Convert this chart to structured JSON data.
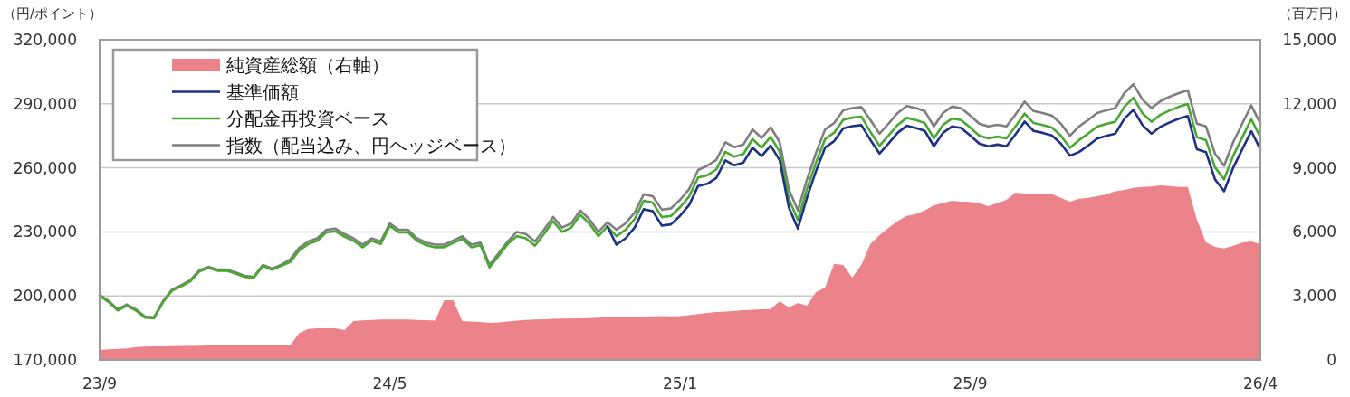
{
  "chart_data": {
    "type": "line",
    "ylabel": "（円/ポイント）",
    "y2label": "（百万円）",
    "legend": "top left",
    "grid": "y",
    "ylim": [
      170000,
      320000
    ],
    "yticks": [
      {
        "value": 170000,
        "label": "170,000"
      },
      {
        "value": 200000,
        "label": "200,000"
      },
      {
        "value": 230000,
        "label": "230,000"
      },
      {
        "value": 260000,
        "label": "260,000"
      },
      {
        "value": 290000,
        "label": "290,000"
      },
      {
        "value": 320000,
        "label": "320,000"
      }
    ],
    "y2lim": [
      0,
      15000
    ],
    "y2ticks": [
      {
        "value": 0,
        "label": "0"
      },
      {
        "value": 3000,
        "label": "3,000"
      },
      {
        "value": 6000,
        "label": "6,000"
      },
      {
        "value": 9000,
        "label": "9,000"
      },
      {
        "value": 12000,
        "label": "12,000"
      },
      {
        "value": 15000,
        "label": "15,000"
      }
    ],
    "categories": [
      "23/9",
      null,
      null,
      null,
      null,
      null,
      null,
      null,
      null,
      null,
      null,
      null,
      null,
      null,
      null,
      null,
      null,
      null,
      null,
      null,
      null,
      null,
      null,
      null,
      null,
      null,
      null,
      null,
      null,
      null,
      null,
      null,
      "24/5",
      null,
      null,
      null,
      null,
      null,
      null,
      null,
      null,
      null,
      null,
      null,
      null,
      null,
      null,
      null,
      null,
      null,
      null,
      null,
      null,
      null,
      null,
      null,
      null,
      null,
      null,
      null,
      null,
      null,
      null,
      null,
      "25/1",
      null,
      null,
      null,
      null,
      null,
      null,
      null,
      null,
      null,
      null,
      null,
      null,
      null,
      null,
      null,
      null,
      null,
      null,
      null,
      null,
      null,
      null,
      null,
      null,
      null,
      null,
      null,
      null,
      null,
      null,
      null,
      "25/9",
      null,
      null,
      null,
      null,
      null,
      null,
      null,
      null,
      null,
      null,
      null,
      null,
      null,
      null,
      null,
      null,
      null,
      null,
      null,
      null,
      null,
      null,
      null,
      null,
      null,
      null,
      null,
      null,
      null,
      null,
      null,
      "26/4"
    ],
    "series": [
      {
        "name": "純資産総額（右軸）",
        "type": "area",
        "axis": "y2",
        "color": "#ec838a",
        "values": [
          470,
          500,
          520,
          540,
          600,
          630,
          640,
          640,
          650,
          660,
          660,
          670,
          680,
          680,
          680,
          680,
          680,
          680,
          680,
          680,
          680,
          680,
          1250,
          1450,
          1480,
          1480,
          1480,
          1400,
          1820,
          1850,
          1870,
          1900,
          1900,
          1900,
          1900,
          1880,
          1860,
          1840,
          2800,
          2800,
          1820,
          1800,
          1780,
          1740,
          1760,
          1800,
          1840,
          1880,
          1900,
          1910,
          1930,
          1940,
          1950,
          1950,
          1960,
          1980,
          2000,
          2010,
          2020,
          2030,
          2030,
          2040,
          2050,
          2040,
          2060,
          2100,
          2150,
          2200,
          2250,
          2270,
          2300,
          2330,
          2350,
          2370,
          2380,
          2750,
          2460,
          2670,
          2540,
          3180,
          3390,
          4500,
          4450,
          3860,
          4450,
          5430,
          5850,
          6190,
          6500,
          6750,
          6830,
          7000,
          7250,
          7350,
          7460,
          7420,
          7400,
          7340,
          7200,
          7350,
          7500,
          7840,
          7800,
          7760,
          7780,
          7760,
          7600,
          7420,
          7550,
          7600,
          7670,
          7750,
          7900,
          7970,
          8060,
          8100,
          8120,
          8180,
          8150,
          8100,
          8100,
          6570,
          5510,
          5300,
          5220,
          5350,
          5500,
          5550,
          5430
        ]
      },
      {
        "name": "基準価額",
        "color": "#1f3184",
        "values": [
          null,
          null,
          null,
          null,
          null,
          null,
          null,
          null,
          null,
          null,
          null,
          null,
          null,
          null,
          null,
          null,
          null,
          null,
          null,
          null,
          null,
          null,
          null,
          null,
          null,
          null,
          null,
          null,
          null,
          null,
          null,
          null,
          null,
          null,
          null,
          null,
          null,
          null,
          null,
          null,
          null,
          null,
          null,
          null,
          null,
          null,
          null,
          null,
          null,
          null,
          null,
          null,
          null,
          null,
          null,
          null,
          232500,
          224000,
          227000,
          232000,
          240600,
          239700,
          232900,
          233500,
          237500,
          242500,
          251500,
          252500,
          255200,
          263500,
          261200,
          262500,
          269500,
          265500,
          270500,
          263500,
          241500,
          231500,
          246000,
          258500,
          269500,
          272500,
          278500,
          279500,
          280000,
          273100,
          266700,
          271400,
          276400,
          279700,
          278700,
          277300,
          270100,
          276400,
          279400,
          278700,
          275200,
          271400,
          270100,
          270900,
          270100,
          275700,
          281700,
          277300,
          276400,
          275200,
          271400,
          265700,
          267400,
          270400,
          273700,
          275000,
          276000,
          283000,
          287200,
          280000,
          276000,
          279300,
          281300,
          283000,
          284300,
          268700,
          267400,
          254600,
          249000,
          260000,
          268700,
          277200,
          268700
        ]
      },
      {
        "name": "分配金再投資ベース",
        "color": "#4aa832",
        "values": [
          200000,
          197100,
          193200,
          195500,
          193200,
          189800,
          189500,
          197100,
          202500,
          204500,
          206800,
          211500,
          213100,
          211800,
          211800,
          210500,
          208900,
          208500,
          214000,
          212300,
          214000,
          215800,
          221300,
          224300,
          225800,
          229800,
          230300,
          227800,
          225800,
          222800,
          225800,
          224300,
          232800,
          229800,
          229800,
          225800,
          223800,
          222800,
          222800,
          224800,
          226800,
          222800,
          223800,
          213300,
          218800,
          224300,
          228000,
          227000,
          223500,
          229000,
          235000,
          230000,
          232000,
          238000,
          234000,
          228000,
          232500,
          228000,
          231000,
          236000,
          244600,
          243700,
          236900,
          237500,
          241500,
          246500,
          255500,
          256500,
          259200,
          267500,
          265200,
          266500,
          273500,
          269500,
          274500,
          267500,
          245500,
          235500,
          250000,
          262500,
          273500,
          276500,
          282500,
          283500,
          284000,
          276800,
          270400,
          275100,
          280100,
          283400,
          282400,
          281000,
          273800,
          280100,
          283100,
          282400,
          278900,
          275100,
          273800,
          274600,
          273800,
          279400,
          285400,
          281000,
          280100,
          278900,
          275100,
          269400,
          273000,
          276000,
          279300,
          280600,
          281600,
          288600,
          292800,
          285600,
          281600,
          284900,
          286900,
          288600,
          289900,
          274300,
          273000,
          260200,
          254600,
          265600,
          274300,
          282800,
          274300
        ]
      },
      {
        "name": "指数（配当込み、円ヘッジベース）",
        "color": "#7f7f7f",
        "values": [
          200500,
          197600,
          193700,
          196000,
          193700,
          190300,
          190000,
          197600,
          203000,
          205000,
          207300,
          212000,
          213600,
          212300,
          212300,
          211000,
          209400,
          209000,
          214500,
          212800,
          214500,
          217000,
          222500,
          225500,
          227000,
          231000,
          231500,
          229000,
          227000,
          224000,
          227000,
          225500,
          234000,
          231000,
          231000,
          227000,
          225000,
          224000,
          224000,
          226000,
          228000,
          224000,
          225000,
          214500,
          220000,
          225500,
          230000,
          229000,
          225500,
          231000,
          237000,
          232000,
          234000,
          240000,
          236000,
          230000,
          234500,
          231000,
          234000,
          239000,
          247600,
          246700,
          240400,
          241000,
          245000,
          250000,
          259000,
          261000,
          263700,
          272000,
          269700,
          271000,
          278000,
          274000,
          279000,
          272000,
          250000,
          240000,
          254500,
          267000,
          278000,
          281000,
          287000,
          288000,
          288500,
          282400,
          276000,
          280700,
          285700,
          289000,
          288000,
          286600,
          279400,
          285700,
          288700,
          288000,
          284500,
          280700,
          279400,
          280200,
          279400,
          285000,
          291000,
          286600,
          285700,
          284500,
          280700,
          275000,
          279400,
          282400,
          285700,
          287000,
          288000,
          295000,
          299200,
          292000,
          288000,
          291300,
          293300,
          295000,
          296300,
          280700,
          279400,
          266600,
          261000,
          272000,
          280700,
          289200,
          280700
        ]
      }
    ]
  }
}
